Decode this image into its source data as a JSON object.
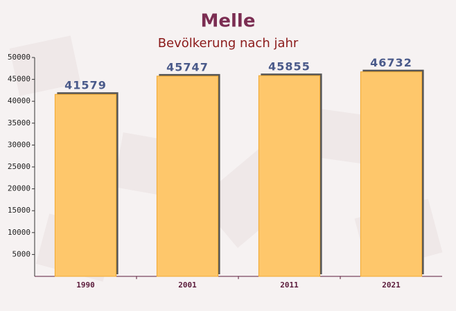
{
  "chart_data": {
    "type": "bar",
    "title": "Melle",
    "subtitle": "Bevölkerung nach jahr",
    "categories": [
      "1990",
      "2001",
      "2011",
      "2021"
    ],
    "values": [
      41579,
      45747,
      45855,
      46732
    ],
    "color": "#fec76b",
    "ylim": [
      0,
      50000
    ],
    "yticks": [
      5000,
      10000,
      15000,
      20000,
      25000,
      30000,
      35000,
      40000,
      45000,
      50000
    ],
    "grid": false
  }
}
